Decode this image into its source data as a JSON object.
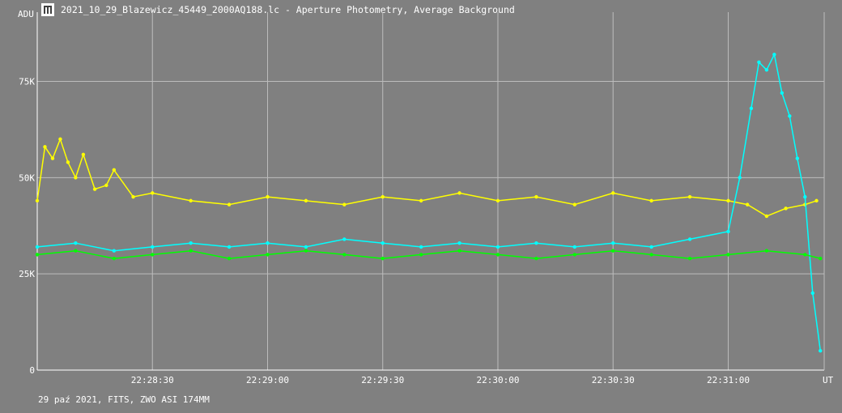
{
  "window": {
    "title": "2021_10_29_Blazewicz_45449_2000AQ188.lc - Aperture Photometry, Average Background",
    "icon": "light-curve-app-icon"
  },
  "footer": {
    "text": "29 paź 2021, FITS, ZWO ASI 174MM"
  },
  "chart_data": {
    "type": "line",
    "title": "",
    "ylabel": "ADU",
    "xlabel": "UT",
    "ylim": [
      0,
      93000
    ],
    "xlim": [
      "22:28:00",
      "22:31:25"
    ],
    "y_ticks": [
      {
        "value": 0,
        "label": "0"
      },
      {
        "value": 25000,
        "label": "25K"
      },
      {
        "value": 50000,
        "label": "50K"
      },
      {
        "value": 75000,
        "label": "75K"
      }
    ],
    "x_ticks": [
      "22:28:30",
      "22:29:00",
      "22:29:30",
      "22:30:00",
      "22:30:30",
      "22:31:00"
    ],
    "grid": true,
    "series": [
      {
        "color": "#ffff00",
        "points": [
          [
            "22:28:00",
            44000
          ],
          [
            "22:28:02",
            58000
          ],
          [
            "22:28:04",
            55000
          ],
          [
            "22:28:06",
            60000
          ],
          [
            "22:28:08",
            54000
          ],
          [
            "22:28:10",
            50000
          ],
          [
            "22:28:12",
            56000
          ],
          [
            "22:28:15",
            47000
          ],
          [
            "22:28:18",
            48000
          ],
          [
            "22:28:20",
            52000
          ],
          [
            "22:28:25",
            45000
          ],
          [
            "22:28:30",
            46000
          ],
          [
            "22:28:40",
            44000
          ],
          [
            "22:28:50",
            43000
          ],
          [
            "22:29:00",
            45000
          ],
          [
            "22:29:10",
            44000
          ],
          [
            "22:29:20",
            43000
          ],
          [
            "22:29:30",
            45000
          ],
          [
            "22:29:40",
            44000
          ],
          [
            "22:29:50",
            46000
          ],
          [
            "22:30:00",
            44000
          ],
          [
            "22:30:10",
            45000
          ],
          [
            "22:30:20",
            43000
          ],
          [
            "22:30:30",
            46000
          ],
          [
            "22:30:40",
            44000
          ],
          [
            "22:30:50",
            45000
          ],
          [
            "22:31:00",
            44000
          ],
          [
            "22:31:05",
            43000
          ],
          [
            "22:31:10",
            40000
          ],
          [
            "22:31:15",
            42000
          ],
          [
            "22:31:20",
            43000
          ],
          [
            "22:31:23",
            44000
          ]
        ]
      },
      {
        "color": "#00ffff",
        "points": [
          [
            "22:28:00",
            32000
          ],
          [
            "22:28:10",
            33000
          ],
          [
            "22:28:20",
            31000
          ],
          [
            "22:28:30",
            32000
          ],
          [
            "22:28:40",
            33000
          ],
          [
            "22:28:50",
            32000
          ],
          [
            "22:29:00",
            33000
          ],
          [
            "22:29:10",
            32000
          ],
          [
            "22:29:20",
            34000
          ],
          [
            "22:29:30",
            33000
          ],
          [
            "22:29:40",
            32000
          ],
          [
            "22:29:50",
            33000
          ],
          [
            "22:30:00",
            32000
          ],
          [
            "22:30:10",
            33000
          ],
          [
            "22:30:20",
            32000
          ],
          [
            "22:30:30",
            33000
          ],
          [
            "22:30:40",
            32000
          ],
          [
            "22:30:50",
            34000
          ],
          [
            "22:31:00",
            36000
          ],
          [
            "22:31:03",
            50000
          ],
          [
            "22:31:06",
            68000
          ],
          [
            "22:31:08",
            80000
          ],
          [
            "22:31:10",
            78000
          ],
          [
            "22:31:12",
            82000
          ],
          [
            "22:31:14",
            72000
          ],
          [
            "22:31:16",
            66000
          ],
          [
            "22:31:18",
            55000
          ],
          [
            "22:31:20",
            45000
          ],
          [
            "22:31:22",
            20000
          ],
          [
            "22:31:24",
            5000
          ]
        ]
      },
      {
        "color": "#00ff00",
        "points": [
          [
            "22:28:00",
            30000
          ],
          [
            "22:28:10",
            31000
          ],
          [
            "22:28:20",
            29000
          ],
          [
            "22:28:30",
            30000
          ],
          [
            "22:28:40",
            31000
          ],
          [
            "22:28:50",
            29000
          ],
          [
            "22:29:00",
            30000
          ],
          [
            "22:29:10",
            31000
          ],
          [
            "22:29:20",
            30000
          ],
          [
            "22:29:30",
            29000
          ],
          [
            "22:29:40",
            30000
          ],
          [
            "22:29:50",
            31000
          ],
          [
            "22:30:00",
            30000
          ],
          [
            "22:30:10",
            29000
          ],
          [
            "22:30:20",
            30000
          ],
          [
            "22:30:30",
            31000
          ],
          [
            "22:30:40",
            30000
          ],
          [
            "22:30:50",
            29000
          ],
          [
            "22:31:00",
            30000
          ],
          [
            "22:31:10",
            31000
          ],
          [
            "22:31:20",
            30000
          ],
          [
            "22:31:24",
            29000
          ]
        ]
      }
    ]
  }
}
